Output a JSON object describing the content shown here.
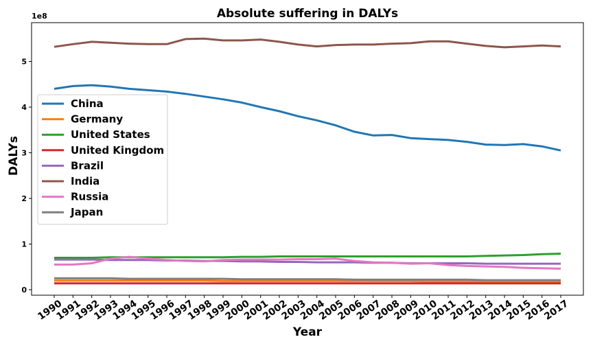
{
  "chart_data": {
    "type": "line",
    "title": "Absolute suffering in DALYs",
    "xlabel": "Year",
    "ylabel": "DALYs",
    "y_offset_label": "1e8",
    "yticks": [
      0,
      1,
      2,
      3,
      4,
      5
    ],
    "ylim": [
      -0.12,
      5.85
    ],
    "x": [
      1990,
      1991,
      1992,
      1993,
      1994,
      1995,
      1996,
      1997,
      1998,
      1999,
      2000,
      2001,
      2002,
      2003,
      2004,
      2005,
      2006,
      2007,
      2008,
      2009,
      2010,
      2011,
      2012,
      2013,
      2014,
      2015,
      2016,
      2017
    ],
    "legend_position": "center-left",
    "grid": false,
    "series": [
      {
        "name": "China",
        "color": "#1f77b4",
        "values": [
          4.4,
          4.46,
          4.48,
          4.45,
          4.4,
          4.37,
          4.34,
          4.29,
          4.23,
          4.17,
          4.1,
          4.0,
          3.91,
          3.8,
          3.71,
          3.6,
          3.46,
          3.38,
          3.39,
          3.32,
          3.3,
          3.28,
          3.24,
          3.18,
          3.17,
          3.19,
          3.14,
          3.05
        ]
      },
      {
        "name": "Germany",
        "color": "#ff7f0e",
        "values": [
          0.2,
          0.2,
          0.2,
          0.2,
          0.2,
          0.2,
          0.2,
          0.2,
          0.2,
          0.19,
          0.19,
          0.19,
          0.19,
          0.19,
          0.19,
          0.19,
          0.19,
          0.19,
          0.19,
          0.19,
          0.18,
          0.18,
          0.18,
          0.18,
          0.18,
          0.18,
          0.18,
          0.18
        ]
      },
      {
        "name": "United States",
        "color": "#2ca02c",
        "values": [
          0.7,
          0.7,
          0.7,
          0.71,
          0.71,
          0.71,
          0.71,
          0.71,
          0.71,
          0.71,
          0.72,
          0.72,
          0.73,
          0.73,
          0.73,
          0.73,
          0.73,
          0.73,
          0.73,
          0.73,
          0.73,
          0.73,
          0.73,
          0.74,
          0.75,
          0.76,
          0.78,
          0.79
        ]
      },
      {
        "name": "United Kingdom",
        "color": "#d62728",
        "values": [
          0.14,
          0.14,
          0.14,
          0.14,
          0.14,
          0.14,
          0.14,
          0.14,
          0.14,
          0.14,
          0.14,
          0.14,
          0.14,
          0.14,
          0.14,
          0.14,
          0.14,
          0.14,
          0.14,
          0.14,
          0.14,
          0.14,
          0.14,
          0.14,
          0.14,
          0.14,
          0.14,
          0.14
        ]
      },
      {
        "name": "Brazil",
        "color": "#9467bd",
        "values": [
          0.66,
          0.66,
          0.66,
          0.65,
          0.65,
          0.65,
          0.64,
          0.64,
          0.63,
          0.63,
          0.62,
          0.62,
          0.61,
          0.61,
          0.6,
          0.6,
          0.6,
          0.59,
          0.59,
          0.58,
          0.58,
          0.58,
          0.58,
          0.57,
          0.57,
          0.57,
          0.57,
          0.57
        ]
      },
      {
        "name": "India",
        "color": "#8c564b",
        "values": [
          5.32,
          5.38,
          5.43,
          5.41,
          5.39,
          5.38,
          5.38,
          5.49,
          5.5,
          5.46,
          5.46,
          5.48,
          5.43,
          5.37,
          5.33,
          5.36,
          5.37,
          5.37,
          5.39,
          5.4,
          5.44,
          5.44,
          5.39,
          5.34,
          5.31,
          5.33,
          5.35,
          5.33
        ]
      },
      {
        "name": "Russia",
        "color": "#e377c2",
        "values": [
          0.55,
          0.55,
          0.58,
          0.68,
          0.72,
          0.68,
          0.65,
          0.63,
          0.62,
          0.65,
          0.66,
          0.66,
          0.66,
          0.67,
          0.67,
          0.68,
          0.63,
          0.6,
          0.59,
          0.57,
          0.58,
          0.54,
          0.52,
          0.51,
          0.5,
          0.48,
          0.47,
          0.46
        ]
      },
      {
        "name": "Japan",
        "color": "#7f7f7f",
        "values": [
          0.25,
          0.25,
          0.25,
          0.25,
          0.24,
          0.24,
          0.24,
          0.24,
          0.24,
          0.24,
          0.23,
          0.23,
          0.23,
          0.23,
          0.23,
          0.23,
          0.22,
          0.22,
          0.22,
          0.22,
          0.22,
          0.22,
          0.22,
          0.21,
          0.21,
          0.21,
          0.21,
          0.21
        ]
      }
    ]
  }
}
